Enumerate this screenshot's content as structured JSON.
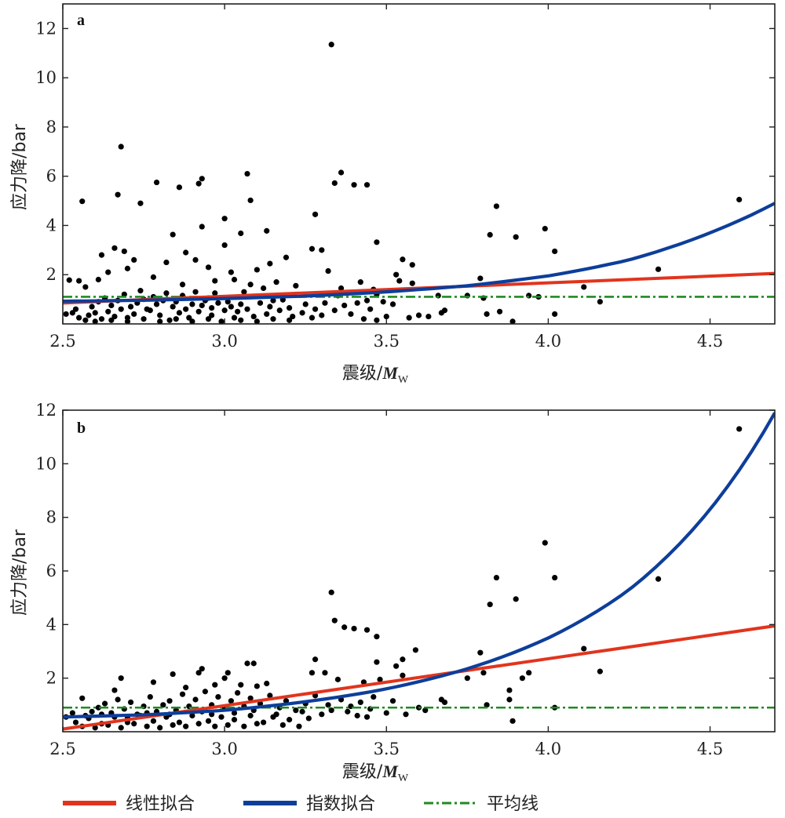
{
  "chart_data": [
    {
      "type": "scatter",
      "panel_label": "a",
      "xlabel": "震级/",
      "xlabel_symbol": "M",
      "xlabel_sub": "W",
      "ylabel": "应力降/bar",
      "xlim": [
        2.5,
        4.7
      ],
      "ylim": [
        0,
        13
      ],
      "xticks": [
        "2.5",
        "3.0",
        "3.5",
        "4.0",
        "4.5"
      ],
      "yticks": [
        "2",
        "4",
        "6",
        "8",
        "10",
        "12"
      ],
      "mean_line": 1.1,
      "linear_fit": {
        "x": [
          2.5,
          4.7
        ],
        "y": [
          0.85,
          2.05
        ]
      },
      "exp_fit": {
        "x": [
          2.5,
          2.75,
          3.0,
          3.25,
          3.5,
          3.75,
          4.0,
          4.25,
          4.5,
          4.7
        ],
        "y": [
          0.92,
          0.96,
          1.03,
          1.13,
          1.3,
          1.55,
          1.95,
          2.6,
          3.7,
          4.9
        ]
      },
      "points": [
        [
          3.33,
          11.35
        ],
        [
          2.68,
          7.2
        ],
        [
          3.07,
          6.1
        ],
        [
          3.36,
          6.15
        ],
        [
          4.59,
          5.05
        ],
        [
          2.56,
          4.98
        ],
        [
          2.67,
          5.25
        ],
        [
          2.74,
          4.9
        ],
        [
          2.79,
          5.75
        ],
        [
          2.86,
          5.55
        ],
        [
          2.92,
          5.7
        ],
        [
          2.93,
          5.9
        ],
        [
          3.08,
          5.02
        ],
        [
          3.34,
          5.72
        ],
        [
          3.4,
          5.65
        ],
        [
          3.44,
          5.65
        ],
        [
          3.84,
          4.78
        ],
        [
          3.28,
          4.45
        ],
        [
          3.0,
          4.28
        ],
        [
          2.93,
          3.95
        ],
        [
          2.84,
          3.63
        ],
        [
          3.05,
          3.68
        ],
        [
          3.13,
          3.78
        ],
        [
          3.99,
          3.87
        ],
        [
          3.82,
          3.62
        ],
        [
          3.9,
          3.53
        ],
        [
          3.47,
          3.32
        ],
        [
          3.0,
          3.2
        ],
        [
          4.02,
          2.95
        ],
        [
          3.27,
          3.05
        ],
        [
          3.3,
          3.0
        ],
        [
          2.66,
          3.08
        ],
        [
          2.69,
          2.95
        ],
        [
          2.62,
          2.8
        ],
        [
          2.88,
          2.9
        ],
        [
          3.19,
          2.7
        ],
        [
          3.55,
          2.62
        ],
        [
          3.58,
          2.4
        ],
        [
          3.14,
          2.45
        ],
        [
          4.34,
          2.22
        ],
        [
          2.72,
          2.6
        ],
        [
          2.91,
          2.6
        ],
        [
          2.82,
          2.5
        ],
        [
          2.95,
          2.3
        ],
        [
          3.32,
          2.15
        ],
        [
          3.1,
          2.2
        ],
        [
          3.02,
          2.1
        ],
        [
          2.7,
          2.25
        ],
        [
          2.64,
          2.1
        ],
        [
          3.53,
          2.0
        ],
        [
          3.79,
          1.85
        ],
        [
          3.54,
          1.75
        ],
        [
          3.58,
          1.65
        ],
        [
          3.16,
          1.7
        ],
        [
          3.42,
          1.7
        ],
        [
          3.03,
          1.8
        ],
        [
          2.78,
          1.9
        ],
        [
          2.97,
          1.75
        ],
        [
          2.61,
          1.8
        ],
        [
          2.52,
          1.78
        ],
        [
          2.55,
          1.75
        ],
        [
          2.57,
          1.5
        ],
        [
          2.87,
          1.6
        ],
        [
          3.22,
          1.55
        ],
        [
          3.08,
          1.6
        ],
        [
          3.12,
          1.45
        ],
        [
          3.36,
          1.45
        ],
        [
          3.46,
          1.4
        ],
        [
          3.47,
          1.2
        ],
        [
          4.11,
          1.5
        ],
        [
          3.66,
          1.15
        ],
        [
          3.75,
          1.15
        ],
        [
          3.8,
          1.05
        ],
        [
          3.94,
          1.15
        ],
        [
          3.97,
          1.1
        ],
        [
          4.16,
          0.9
        ],
        [
          3.35,
          1.15
        ],
        [
          3.18,
          0.98
        ],
        [
          2.95,
          1.05
        ],
        [
          3.44,
          0.95
        ],
        [
          3.68,
          0.55
        ],
        [
          3.67,
          0.45
        ],
        [
          3.81,
          0.4
        ],
        [
          3.85,
          0.5
        ],
        [
          3.89,
          0.1
        ],
        [
          4.02,
          0.4
        ],
        [
          3.6,
          0.35
        ],
        [
          3.63,
          0.3
        ],
        [
          3.57,
          0.25
        ],
        [
          3.5,
          0.3
        ],
        [
          3.39,
          0.4
        ],
        [
          3.43,
          0.2
        ],
        [
          3.47,
          0.15
        ],
        [
          3.3,
          0.35
        ],
        [
          3.24,
          0.45
        ],
        [
          3.27,
          0.25
        ],
        [
          3.13,
          0.4
        ],
        [
          3.09,
          0.3
        ],
        [
          3.1,
          0.1
        ],
        [
          3.04,
          0.5
        ],
        [
          3.03,
          0.25
        ],
        [
          2.99,
          0.1
        ],
        [
          2.96,
          0.35
        ],
        [
          2.92,
          0.5
        ],
        [
          2.89,
          0.25
        ],
        [
          2.86,
          0.45
        ],
        [
          2.83,
          0.15
        ],
        [
          2.8,
          0.35
        ],
        [
          2.77,
          0.55
        ],
        [
          2.75,
          0.2
        ],
        [
          2.72,
          0.4
        ],
        [
          2.7,
          0.1
        ],
        [
          2.68,
          0.6
        ],
        [
          2.66,
          0.3
        ],
        [
          2.64,
          0.5
        ],
        [
          2.62,
          0.2
        ],
        [
          2.6,
          0.45
        ],
        [
          2.58,
          0.35
        ],
        [
          2.55,
          0.25
        ],
        [
          2.53,
          0.45
        ],
        [
          2.51,
          0.4
        ],
        [
          2.54,
          0.6
        ],
        [
          2.57,
          0.15
        ],
        [
          2.59,
          0.7
        ],
        [
          2.61,
          0.9
        ],
        [
          2.63,
          1.05
        ],
        [
          2.65,
          0.75
        ],
        [
          2.67,
          0.95
        ],
        [
          2.69,
          1.2
        ],
        [
          2.71,
          0.7
        ],
        [
          2.73,
          0.85
        ],
        [
          2.74,
          1.35
        ],
        [
          2.76,
          0.6
        ],
        [
          2.78,
          1.1
        ],
        [
          2.79,
          0.8
        ],
        [
          2.81,
          0.95
        ],
        [
          2.82,
          1.25
        ],
        [
          2.84,
          0.7
        ],
        [
          2.85,
          0.9
        ],
        [
          2.87,
          1.15
        ],
        [
          2.88,
          0.6
        ],
        [
          2.9,
          0.8
        ],
        [
          2.91,
          1.3
        ],
        [
          2.93,
          0.75
        ],
        [
          2.94,
          0.95
        ],
        [
          2.96,
          0.65
        ],
        [
          2.97,
          1.25
        ],
        [
          2.98,
          0.85
        ],
        [
          3.0,
          0.55
        ],
        [
          3.01,
          0.9
        ],
        [
          3.02,
          0.7
        ],
        [
          3.05,
          0.8
        ],
        [
          3.06,
          1.3
        ],
        [
          3.07,
          0.6
        ],
        [
          3.11,
          0.85
        ],
        [
          3.14,
          0.7
        ],
        [
          3.15,
          0.95
        ],
        [
          3.17,
          0.55
        ],
        [
          3.2,
          0.65
        ],
        [
          3.21,
          0.3
        ],
        [
          3.25,
          0.8
        ],
        [
          3.28,
          0.6
        ],
        [
          3.31,
          0.85
        ],
        [
          3.34,
          0.55
        ],
        [
          3.37,
          0.75
        ],
        [
          3.41,
          0.85
        ],
        [
          3.45,
          0.6
        ],
        [
          3.49,
          0.9
        ],
        [
          3.52,
          0.8
        ],
        [
          2.6,
          0.1
        ],
        [
          2.65,
          0.15
        ],
        [
          2.7,
          0.25
        ],
        [
          2.8,
          0.1
        ],
        [
          2.85,
          0.2
        ],
        [
          2.9,
          0.1
        ],
        [
          2.95,
          0.2
        ],
        [
          3.05,
          0.15
        ],
        [
          3.15,
          0.2
        ],
        [
          3.2,
          0.15
        ],
        [
          2.75,
          1.0
        ]
      ]
    },
    {
      "type": "scatter",
      "panel_label": "b",
      "xlabel": "震级/",
      "xlabel_symbol": "M",
      "xlabel_sub": "W",
      "ylabel": "应力降/bar",
      "xlim": [
        2.5,
        4.7
      ],
      "ylim": [
        0,
        12
      ],
      "xticks": [
        "2.5",
        "3.0",
        "3.5",
        "4.0",
        "4.5"
      ],
      "yticks": [
        "2",
        "4",
        "6",
        "8",
        "10",
        "12"
      ],
      "mean_line": 0.9,
      "linear_fit": {
        "x": [
          2.5,
          4.7
        ],
        "y": [
          0.1,
          3.95
        ]
      },
      "exp_fit": {
        "x": [
          2.5,
          2.75,
          3.0,
          3.25,
          3.5,
          3.75,
          4.0,
          4.25,
          4.5,
          4.7
        ],
        "y": [
          0.55,
          0.63,
          0.8,
          1.12,
          1.6,
          2.35,
          3.5,
          5.3,
          8.3,
          11.9
        ]
      },
      "points": [
        [
          4.59,
          11.3
        ],
        [
          3.99,
          7.05
        ],
        [
          3.84,
          5.75
        ],
        [
          4.02,
          5.75
        ],
        [
          4.34,
          5.7
        ],
        [
          3.33,
          5.2
        ],
        [
          3.9,
          4.95
        ],
        [
          3.82,
          4.75
        ],
        [
          3.34,
          4.15
        ],
        [
          3.37,
          3.9
        ],
        [
          3.4,
          3.85
        ],
        [
          3.44,
          3.8
        ],
        [
          3.47,
          3.55
        ],
        [
          4.11,
          3.1
        ],
        [
          3.59,
          3.05
        ],
        [
          3.79,
          2.95
        ],
        [
          3.28,
          2.7
        ],
        [
          3.55,
          2.7
        ],
        [
          3.47,
          2.6
        ],
        [
          3.53,
          2.45
        ],
        [
          3.07,
          2.55
        ],
        [
          3.09,
          2.55
        ],
        [
          3.27,
          2.2
        ],
        [
          3.31,
          2.2
        ],
        [
          3.01,
          2.2
        ],
        [
          2.93,
          2.35
        ],
        [
          2.92,
          2.2
        ],
        [
          2.84,
          2.15
        ],
        [
          3.0,
          2.0
        ],
        [
          3.8,
          2.2
        ],
        [
          4.16,
          2.25
        ],
        [
          3.94,
          2.2
        ],
        [
          3.92,
          2.0
        ],
        [
          3.55,
          2.1
        ],
        [
          3.48,
          1.95
        ],
        [
          3.43,
          1.85
        ],
        [
          3.35,
          1.95
        ],
        [
          3.13,
          1.8
        ],
        [
          3.1,
          1.7
        ],
        [
          3.05,
          1.75
        ],
        [
          2.97,
          1.75
        ],
        [
          2.88,
          1.65
        ],
        [
          2.78,
          1.85
        ],
        [
          2.68,
          2.0
        ],
        [
          2.66,
          1.55
        ],
        [
          2.56,
          1.25
        ],
        [
          3.67,
          1.2
        ],
        [
          3.68,
          1.1
        ],
        [
          3.75,
          2.0
        ],
        [
          3.88,
          1.55
        ],
        [
          3.88,
          1.2
        ],
        [
          3.81,
          1.0
        ],
        [
          3.89,
          0.4
        ],
        [
          4.02,
          0.9
        ],
        [
          3.6,
          0.9
        ],
        [
          3.62,
          0.8
        ],
        [
          3.56,
          0.65
        ],
        [
          3.5,
          0.7
        ],
        [
          3.45,
          0.85
        ],
        [
          3.41,
          0.6
        ],
        [
          3.38,
          0.75
        ],
        [
          3.3,
          0.65
        ],
        [
          3.26,
          0.5
        ],
        [
          3.23,
          0.2
        ],
        [
          3.2,
          0.45
        ],
        [
          3.15,
          0.55
        ],
        [
          3.12,
          0.35
        ],
        [
          3.08,
          0.6
        ],
        [
          3.03,
          0.45
        ],
        [
          2.99,
          0.55
        ],
        [
          2.95,
          0.4
        ],
        [
          2.9,
          0.6
        ],
        [
          2.86,
          0.35
        ],
        [
          2.82,
          0.55
        ],
        [
          2.78,
          0.4
        ],
        [
          2.74,
          0.6
        ],
        [
          2.7,
          0.35
        ],
        [
          2.66,
          0.55
        ],
        [
          2.62,
          0.3
        ],
        [
          2.58,
          0.5
        ],
        [
          2.54,
          0.35
        ],
        [
          2.51,
          0.55
        ],
        [
          2.53,
          0.7
        ],
        [
          2.56,
          0.2
        ],
        [
          2.59,
          0.75
        ],
        [
          2.61,
          0.9
        ],
        [
          2.63,
          1.05
        ],
        [
          2.65,
          0.7
        ],
        [
          2.67,
          1.2
        ],
        [
          2.69,
          0.85
        ],
        [
          2.71,
          1.1
        ],
        [
          2.73,
          0.65
        ],
        [
          2.75,
          0.95
        ],
        [
          2.77,
          1.3
        ],
        [
          2.79,
          0.75
        ],
        [
          2.81,
          1.0
        ],
        [
          2.83,
          1.15
        ],
        [
          2.85,
          0.8
        ],
        [
          2.87,
          1.4
        ],
        [
          2.89,
          0.95
        ],
        [
          2.91,
          1.2
        ],
        [
          2.93,
          0.75
        ],
        [
          2.94,
          1.5
        ],
        [
          2.96,
          1.0
        ],
        [
          2.98,
          1.3
        ],
        [
          3.0,
          0.85
        ],
        [
          3.02,
          1.15
        ],
        [
          3.04,
          1.45
        ],
        [
          3.06,
          0.95
        ],
        [
          3.08,
          1.25
        ],
        [
          3.11,
          1.05
        ],
        [
          3.14,
          1.35
        ],
        [
          3.17,
          0.9
        ],
        [
          3.19,
          1.15
        ],
        [
          3.22,
          0.8
        ],
        [
          3.25,
          1.05
        ],
        [
          3.28,
          1.35
        ],
        [
          3.32,
          1.0
        ],
        [
          3.36,
          1.2
        ],
        [
          3.39,
          0.95
        ],
        [
          3.42,
          1.1
        ],
        [
          3.46,
          1.3
        ],
        [
          3.52,
          1.15
        ],
        [
          2.6,
          0.15
        ],
        [
          2.64,
          0.25
        ],
        [
          2.68,
          0.15
        ],
        [
          2.72,
          0.3
        ],
        [
          2.76,
          0.2
        ],
        [
          2.8,
          0.15
        ],
        [
          2.84,
          0.25
        ],
        [
          2.88,
          0.2
        ],
        [
          2.92,
          0.3
        ],
        [
          2.97,
          0.2
        ],
        [
          3.01,
          0.25
        ],
        [
          3.06,
          0.2
        ],
        [
          3.1,
          0.3
        ],
        [
          3.18,
          0.25
        ],
        [
          2.57,
          0.6
        ],
        [
          2.62,
          0.65
        ],
        [
          2.7,
          0.55
        ],
        [
          2.76,
          0.7
        ],
        [
          2.83,
          0.65
        ],
        [
          2.9,
          0.75
        ],
        [
          2.96,
          0.65
        ],
        [
          3.03,
          0.7
        ],
        [
          3.09,
          0.8
        ],
        [
          3.16,
          0.65
        ],
        [
          3.24,
          0.75
        ],
        [
          3.33,
          0.8
        ],
        [
          3.44,
          0.55
        ]
      ]
    }
  ],
  "legend": {
    "items": [
      {
        "label": "线性拟合",
        "color": "#e2341d"
      },
      {
        "label": "指数拟合",
        "color": "#0d3e9a"
      },
      {
        "label": "平均线",
        "color": "#1f8a22"
      }
    ]
  }
}
